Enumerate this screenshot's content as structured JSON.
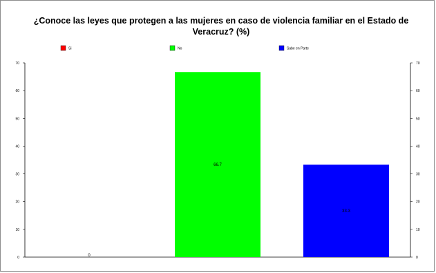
{
  "chart_data": {
    "type": "bar",
    "title_line1": "¿Conoce las leyes que protegen a las mujeres en caso de violencia familiar en el Estado de",
    "title_line2": "Veracruz? (%)",
    "categories": [
      "Si",
      "No",
      "Sabe en Parte"
    ],
    "values": [
      0,
      66.7,
      33.3
    ],
    "data_labels": [
      "0",
      "66.7",
      "33.3"
    ],
    "colors": [
      "#ff0000",
      "#00ff00",
      "#0000ff"
    ],
    "ylim": [
      0,
      70
    ],
    "yticks": [
      "0",
      "10",
      "20",
      "30",
      "40",
      "50",
      "60",
      "70"
    ],
    "grid": false,
    "legend_placement": "top",
    "secondary_axis": true
  }
}
